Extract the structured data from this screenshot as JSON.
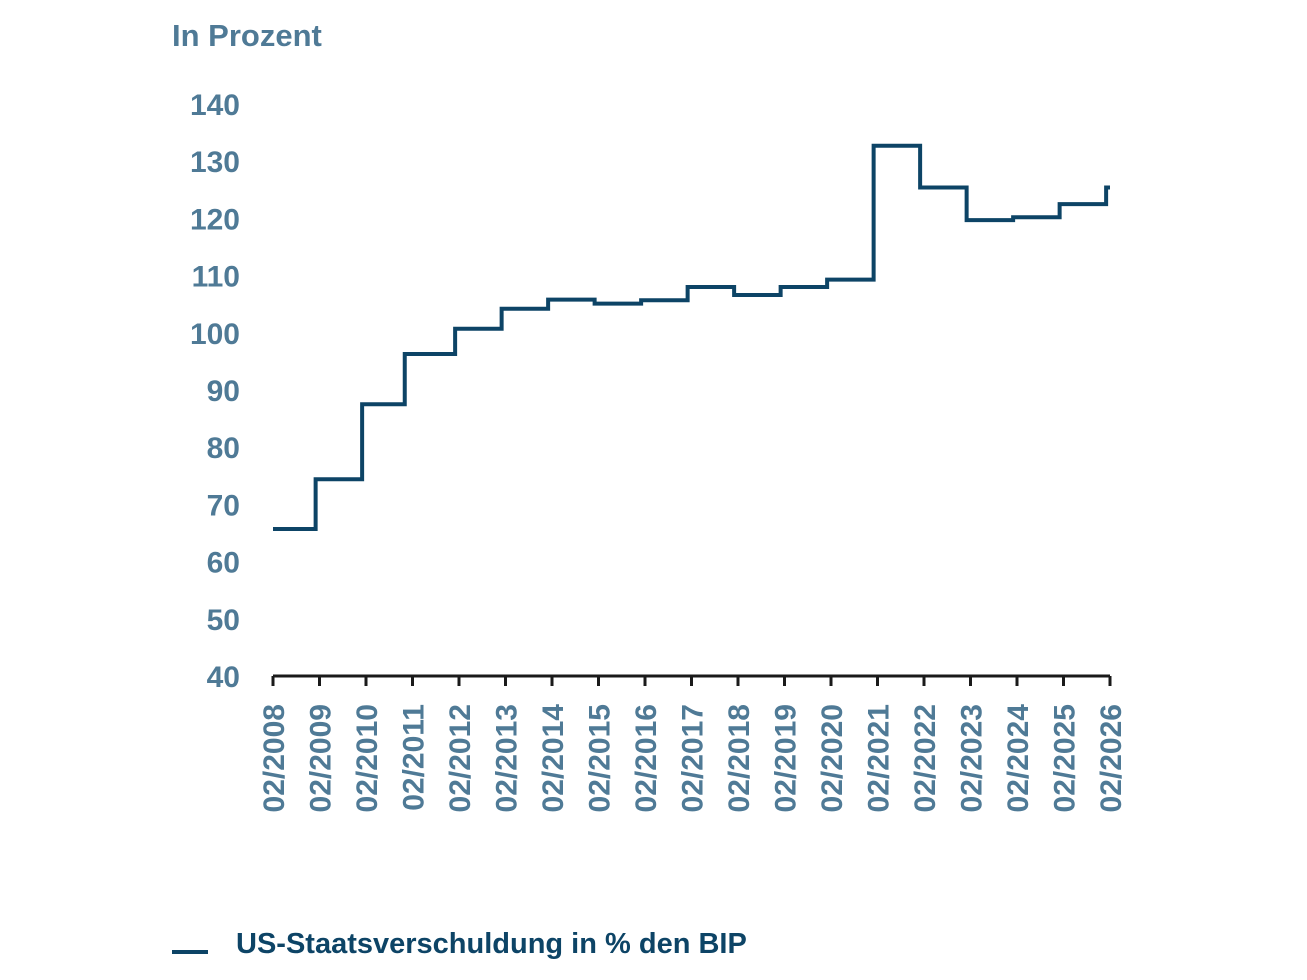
{
  "chart_data": {
    "type": "line",
    "step": true,
    "ylabel": "In Prozent",
    "ylim": [
      40,
      140
    ],
    "yticks": [
      40,
      50,
      60,
      70,
      80,
      90,
      100,
      110,
      120,
      130,
      140
    ],
    "xticks": [
      "02/2008",
      "02/2009",
      "02/2010",
      "02/2011",
      "02/2012",
      "02/2013",
      "02/2014",
      "02/2015",
      "02/2016",
      "02/2017",
      "02/2018",
      "02/2019",
      "02/2020",
      "02/2021",
      "02/2022",
      "02/2023",
      "02/2024",
      "02/2025",
      "02/2026"
    ],
    "grid": false,
    "legend_position": "bottom-left",
    "series": [
      {
        "name": "US-Staatsverschuldung in % den BIP",
        "color": "#0d4466",
        "points": [
          {
            "date": "02/2008",
            "value": 65.7
          },
          {
            "date": "01/2009",
            "value": 74.4
          },
          {
            "date": "01/2010",
            "value": 87.5
          },
          {
            "date": "12/2010",
            "value": 96.3
          },
          {
            "date": "01/2012",
            "value": 100.7
          },
          {
            "date": "01/2013",
            "value": 104.2
          },
          {
            "date": "01/2014",
            "value": 105.8
          },
          {
            "date": "01/2015",
            "value": 105.1
          },
          {
            "date": "01/2016",
            "value": 105.7
          },
          {
            "date": "01/2017",
            "value": 108.0
          },
          {
            "date": "01/2018",
            "value": 106.6
          },
          {
            "date": "01/2019",
            "value": 108.0
          },
          {
            "date": "01/2020",
            "value": 109.3
          },
          {
            "date": "01/2021",
            "value": 132.7
          },
          {
            "date": "01/2022",
            "value": 125.4
          },
          {
            "date": "01/2023",
            "value": 119.7
          },
          {
            "date": "01/2024",
            "value": 120.2
          },
          {
            "date": "01/2025",
            "value": 122.5
          },
          {
            "date": "01/2026",
            "value": 125.4
          },
          {
            "date": "02/2026",
            "value": 125.4
          }
        ]
      }
    ],
    "axis_color": "#1a1a1a",
    "tick_label_color": "#4f7a96"
  }
}
